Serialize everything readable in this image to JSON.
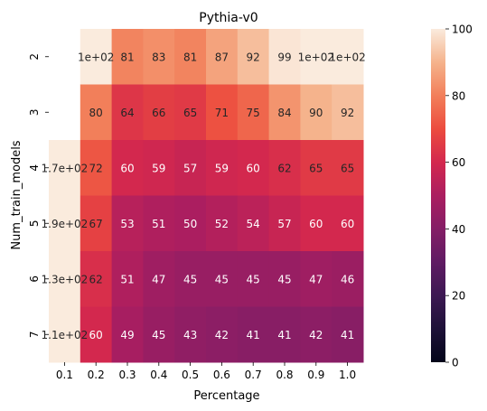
{
  "chart_data": {
    "type": "heatmap",
    "title": "Pythia-v0",
    "xlabel": "Percentage",
    "ylabel": "Num_train_models",
    "x_categories": [
      "0.1",
      "0.2",
      "0.3",
      "0.4",
      "0.5",
      "0.6",
      "0.7",
      "0.8",
      "0.9",
      "1.0"
    ],
    "y_categories": [
      "2",
      "3",
      "4",
      "5",
      "6",
      "7"
    ],
    "values": [
      [
        null,
        100,
        81,
        83,
        81,
        87,
        92,
        99,
        100,
        100
      ],
      [
        null,
        80,
        64,
        66,
        65,
        71,
        75,
        84,
        90,
        92
      ],
      [
        170,
        72,
        60,
        59,
        57,
        59,
        60,
        62,
        65,
        65
      ],
      [
        190,
        67,
        53,
        51,
        50,
        52,
        54,
        57,
        60,
        60
      ],
      [
        130,
        62,
        51,
        47,
        45,
        45,
        45,
        45,
        47,
        46
      ],
      [
        110,
        60,
        49,
        45,
        43,
        42,
        41,
        41,
        42,
        41
      ]
    ],
    "annotations": [
      [
        "",
        "1e+02",
        "81",
        "83",
        "81",
        "87",
        "92",
        "99",
        "1e+02",
        "1e+02"
      ],
      [
        "",
        "80",
        "64",
        "66",
        "65",
        "71",
        "75",
        "84",
        "90",
        "92"
      ],
      [
        "1.7e+02",
        "72",
        "60",
        "59",
        "57",
        "59",
        "60",
        "62",
        "65",
        "65"
      ],
      [
        "1.9e+02",
        "67",
        "53",
        "51",
        "50",
        "52",
        "54",
        "57",
        "60",
        "60"
      ],
      [
        "1.3e+02",
        "62",
        "51",
        "47",
        "45",
        "45",
        "45",
        "45",
        "47",
        "46"
      ],
      [
        "1.1e+02",
        "60",
        "49",
        "45",
        "43",
        "42",
        "41",
        "41",
        "42",
        "41"
      ]
    ],
    "colorbar": {
      "range": [
        0,
        100
      ],
      "ticks": [
        "0",
        "20",
        "40",
        "60",
        "80",
        "100"
      ],
      "colormap": "rocket"
    },
    "grid": false
  }
}
